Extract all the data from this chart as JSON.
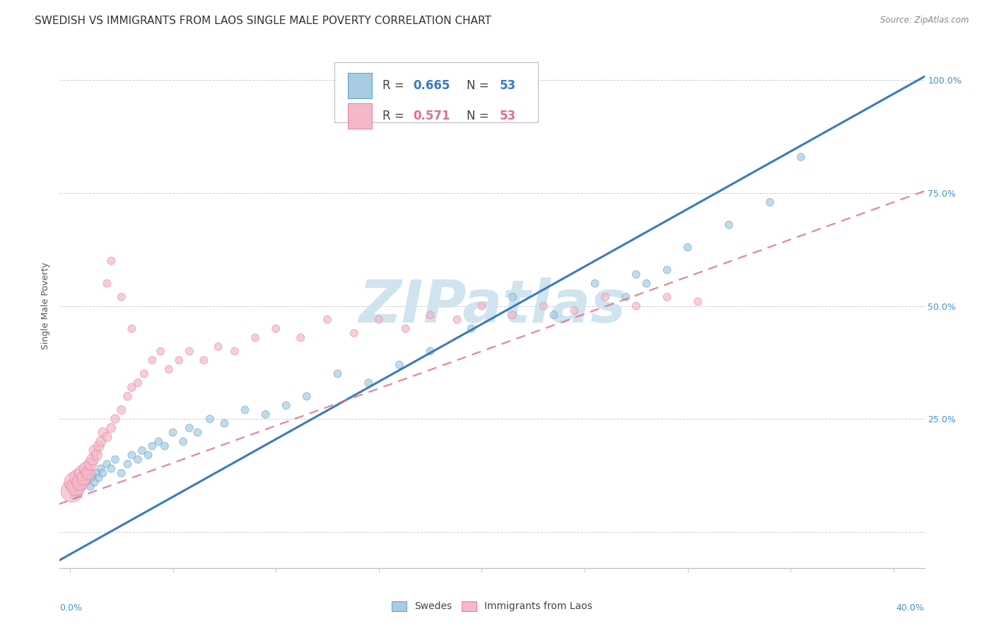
{
  "title": "SWEDISH VS IMMIGRANTS FROM LAOS SINGLE MALE POVERTY CORRELATION CHART",
  "source": "Source: ZipAtlas.com",
  "ylabel": "Single Male Poverty",
  "yticks": [
    0.0,
    0.25,
    0.5,
    0.75,
    1.0
  ],
  "ytick_labels": [
    "",
    "25.0%",
    "50.0%",
    "75.0%",
    "100.0%"
  ],
  "legend_label_blue": "Swedes",
  "legend_label_pink": "Immigrants from Laos",
  "blue_color": "#a8cce0",
  "pink_color": "#f4b8c8",
  "blue_edge_color": "#4a90c4",
  "pink_edge_color": "#e07090",
  "blue_line_color": "#3a7bbf",
  "pink_line_color": "#e07090",
  "tick_color": "#4a90c4",
  "legend_r_color": "#333333",
  "legend_val_blue": "#3a7bbf",
  "legend_val_pink": "#e07090",
  "blue_scatter_x": [
    0.002,
    0.003,
    0.004,
    0.005,
    0.006,
    0.007,
    0.008,
    0.009,
    0.01,
    0.011,
    0.012,
    0.013,
    0.014,
    0.015,
    0.016,
    0.018,
    0.02,
    0.022,
    0.025,
    0.028,
    0.03,
    0.033,
    0.035,
    0.038,
    0.04,
    0.043,
    0.046,
    0.05,
    0.055,
    0.058,
    0.062,
    0.068,
    0.075,
    0.085,
    0.095,
    0.105,
    0.115,
    0.13,
    0.145,
    0.16,
    0.175,
    0.195,
    0.215,
    0.235,
    0.255,
    0.275,
    0.3,
    0.32,
    0.34,
    0.355,
    0.27,
    0.28,
    0.29
  ],
  "blue_scatter_y": [
    0.08,
    0.1,
    0.09,
    0.11,
    0.1,
    0.12,
    0.11,
    0.13,
    0.1,
    0.12,
    0.11,
    0.13,
    0.12,
    0.14,
    0.13,
    0.15,
    0.14,
    0.16,
    0.13,
    0.15,
    0.17,
    0.16,
    0.18,
    0.17,
    0.19,
    0.2,
    0.19,
    0.22,
    0.2,
    0.23,
    0.22,
    0.25,
    0.24,
    0.27,
    0.26,
    0.28,
    0.3,
    0.35,
    0.33,
    0.37,
    0.4,
    0.45,
    0.52,
    0.48,
    0.55,
    0.57,
    0.63,
    0.68,
    0.73,
    0.83,
    0.52,
    0.55,
    0.58
  ],
  "blue_scatter_s": [
    60,
    60,
    60,
    60,
    60,
    60,
    60,
    60,
    60,
    60,
    60,
    60,
    60,
    60,
    60,
    60,
    60,
    60,
    60,
    60,
    60,
    60,
    60,
    60,
    60,
    60,
    60,
    60,
    60,
    60,
    60,
    60,
    60,
    60,
    60,
    60,
    60,
    60,
    60,
    60,
    60,
    60,
    60,
    60,
    60,
    60,
    60,
    60,
    60,
    60,
    60,
    60,
    60
  ],
  "pink_scatter_x": [
    0.001,
    0.002,
    0.003,
    0.004,
    0.005,
    0.006,
    0.007,
    0.008,
    0.009,
    0.01,
    0.011,
    0.012,
    0.013,
    0.014,
    0.015,
    0.016,
    0.018,
    0.02,
    0.022,
    0.025,
    0.028,
    0.03,
    0.033,
    0.036,
    0.04,
    0.044,
    0.048,
    0.053,
    0.058,
    0.065,
    0.072,
    0.08,
    0.09,
    0.1,
    0.112,
    0.125,
    0.138,
    0.15,
    0.163,
    0.175,
    0.188,
    0.2,
    0.215,
    0.23,
    0.245,
    0.26,
    0.275,
    0.29,
    0.305,
    0.018,
    0.02,
    0.025,
    0.03
  ],
  "pink_scatter_y": [
    0.09,
    0.11,
    0.1,
    0.12,
    0.11,
    0.13,
    0.12,
    0.14,
    0.13,
    0.15,
    0.16,
    0.18,
    0.17,
    0.19,
    0.2,
    0.22,
    0.21,
    0.23,
    0.25,
    0.27,
    0.3,
    0.32,
    0.33,
    0.35,
    0.38,
    0.4,
    0.36,
    0.38,
    0.4,
    0.38,
    0.41,
    0.4,
    0.43,
    0.45,
    0.43,
    0.47,
    0.44,
    0.47,
    0.45,
    0.48,
    0.47,
    0.5,
    0.48,
    0.5,
    0.49,
    0.52,
    0.5,
    0.52,
    0.51,
    0.55,
    0.6,
    0.52,
    0.45
  ],
  "pink_scatter_s": [
    500,
    400,
    350,
    300,
    280,
    250,
    220,
    200,
    180,
    160,
    140,
    130,
    120,
    110,
    100,
    90,
    90,
    85,
    80,
    75,
    70,
    70,
    65,
    65,
    60,
    60,
    60,
    60,
    60,
    60,
    60,
    60,
    60,
    60,
    60,
    60,
    60,
    60,
    60,
    60,
    60,
    60,
    60,
    60,
    60,
    60,
    60,
    60,
    60,
    60,
    60,
    60,
    60
  ],
  "blue_slope": 2.55,
  "blue_intercept": -0.05,
  "pink_slope": 1.65,
  "pink_intercept": 0.07,
  "xlim": [
    -0.005,
    0.415
  ],
  "ylim": [
    -0.08,
    1.08
  ],
  "background_color": "#ffffff",
  "grid_color": "#cccccc",
  "watermark_text": "ZIPatlas",
  "watermark_color": "#d0e4f0",
  "title_fontsize": 11,
  "axis_label_fontsize": 9,
  "tick_fontsize": 9,
  "legend_fontsize": 12
}
